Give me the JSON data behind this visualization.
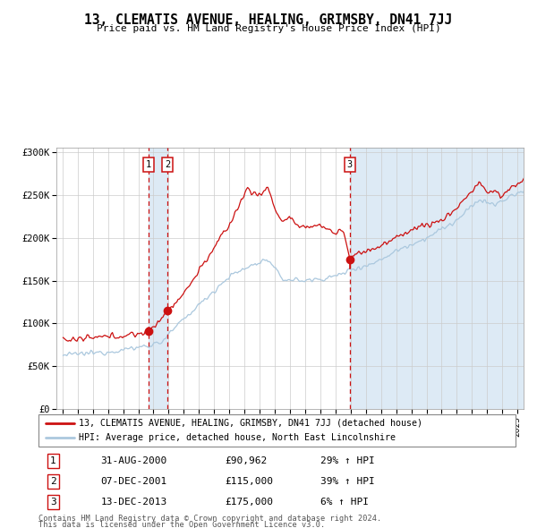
{
  "title": "13, CLEMATIS AVENUE, HEALING, GRIMSBY, DN41 7JJ",
  "subtitle": "Price paid vs. HM Land Registry's House Price Index (HPI)",
  "legend_line1": "13, CLEMATIS AVENUE, HEALING, GRIMSBY, DN41 7JJ (detached house)",
  "legend_line2": "HPI: Average price, detached house, North East Lincolnshire",
  "footer1": "Contains HM Land Registry data © Crown copyright and database right 2024.",
  "footer2": "This data is licensed under the Open Government Licence v3.0.",
  "transactions": [
    {
      "label": "1",
      "date": "31-AUG-2000",
      "price": 90962,
      "pct": "29%",
      "dir": "↑",
      "x_year": 2000.664
    },
    {
      "label": "2",
      "date": "07-DEC-2001",
      "price": 115000,
      "pct": "39%",
      "dir": "↑",
      "x_year": 2001.932
    },
    {
      "label": "3",
      "date": "13-DEC-2013",
      "price": 175000,
      "pct": "6%",
      "dir": "↑",
      "x_year": 2013.944
    }
  ],
  "hpi_color": "#abc8de",
  "price_color": "#cc1111",
  "shade_color": "#ddeaf5",
  "grid_color": "#cccccc",
  "ylim": [
    0,
    305000
  ],
  "xlim_start": 1994.6,
  "xlim_end": 2025.4,
  "yticks": [
    0,
    50000,
    100000,
    150000,
    200000,
    250000,
    300000
  ]
}
